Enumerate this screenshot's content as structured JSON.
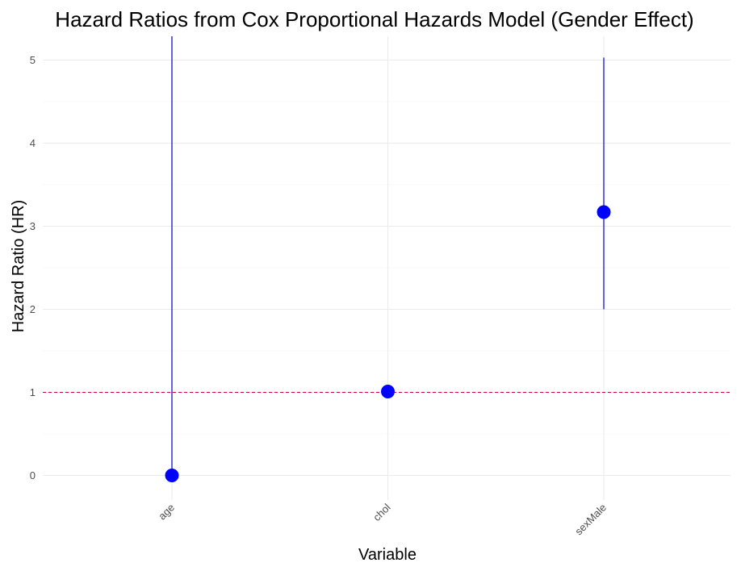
{
  "chart_data": {
    "type": "scatter",
    "title": "Hazard Ratios from Cox Proportional Hazards Model (Gender Effect)",
    "xlabel": "Variable",
    "ylabel": "Hazard Ratio (HR)",
    "categories": [
      "age",
      "chol",
      "sexMale"
    ],
    "points": [
      {
        "category": "age",
        "hr": 0.0,
        "lower": 0.0,
        "upper": 5.3
      },
      {
        "category": "chol",
        "hr": 1.01,
        "lower": 1.0,
        "upper": 1.02
      },
      {
        "category": "sexMale",
        "hr": 3.17,
        "lower": 2.0,
        "upper": 5.03
      }
    ],
    "y_ticks": [
      0,
      1,
      2,
      3,
      4,
      5
    ],
    "ylim": [
      -0.3,
      5.3
    ],
    "reference_line": {
      "y": 1,
      "style": "dashed",
      "color": "#cc0033"
    },
    "point_color": "#0000ff",
    "errorbar_color": "#0000cc",
    "grid": true,
    "legend": "none"
  }
}
